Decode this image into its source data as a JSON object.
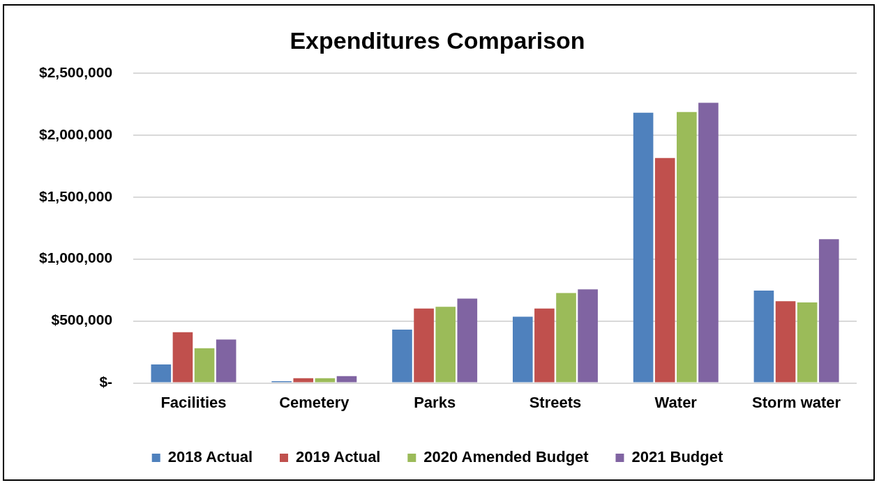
{
  "chart_data": {
    "type": "bar",
    "title": "Expenditures Comparison",
    "categories": [
      "Facilities",
      "Cemetery",
      "Parks",
      "Streets",
      "Water",
      "Storm water"
    ],
    "series": [
      {
        "name": "2018 Actual",
        "color": "#4f81bd",
        "values": [
          150000,
          15000,
          430000,
          535000,
          2180000,
          745000
        ]
      },
      {
        "name": "2019 Actual",
        "color": "#c0504d",
        "values": [
          410000,
          38000,
          600000,
          600000,
          1815000,
          660000
        ]
      },
      {
        "name": "2020 Amended Budget",
        "color": "#9bbb59",
        "values": [
          280000,
          38000,
          615000,
          725000,
          2185000,
          650000
        ]
      },
      {
        "name": "2021 Budget",
        "color": "#8064a2",
        "values": [
          350000,
          55000,
          680000,
          755000,
          2260000,
          1160000
        ]
      }
    ],
    "ylim": [
      0,
      2500000
    ],
    "yticks": [
      {
        "value": 0,
        "label": "$-"
      },
      {
        "value": 500000,
        "label": "$500,000"
      },
      {
        "value": 1000000,
        "label": "$1,000,000"
      },
      {
        "value": 1500000,
        "label": "$1,500,000"
      },
      {
        "value": 2000000,
        "label": "$2,000,000"
      },
      {
        "value": 2500000,
        "label": "$2,500,000"
      }
    ],
    "grid": "y",
    "legend": "bottom"
  }
}
